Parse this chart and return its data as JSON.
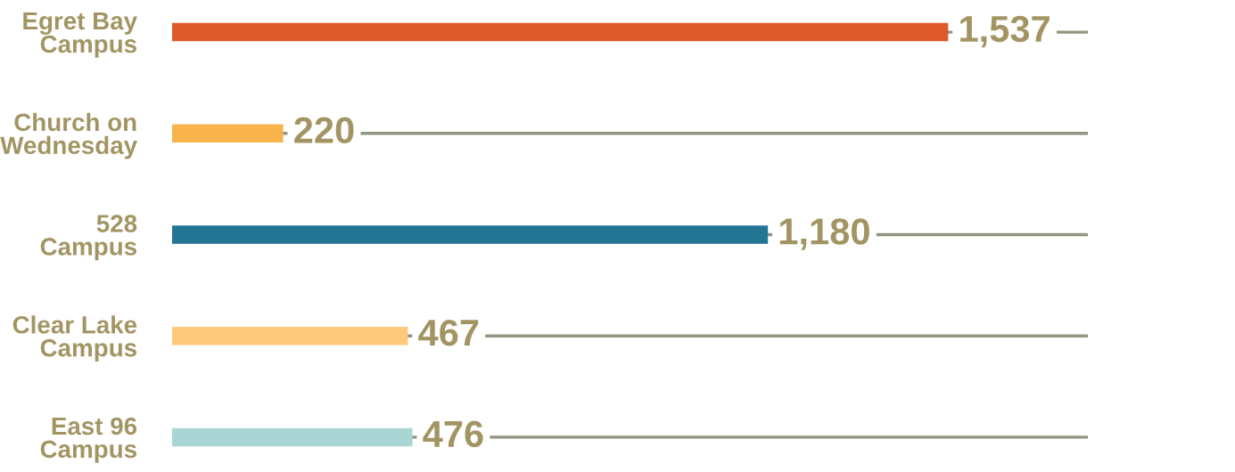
{
  "chart_data": {
    "type": "bar",
    "orientation": "horizontal",
    "categories": [
      "Egret Bay\nCampus",
      "Church on\nWednesday",
      "528\nCampus",
      "Clear Lake\nCampus",
      "East 96\nCampus"
    ],
    "values": [
      1537,
      220,
      1180,
      467,
      476
    ],
    "colors": [
      "#de5a2c",
      "#f8b44a",
      "#237594",
      "#fec97c",
      "#aad5d5"
    ],
    "value_labels": [
      "1,537",
      "220",
      "1,180",
      "467",
      "476"
    ],
    "grid": "y",
    "tick_labels": "y"
  }
}
